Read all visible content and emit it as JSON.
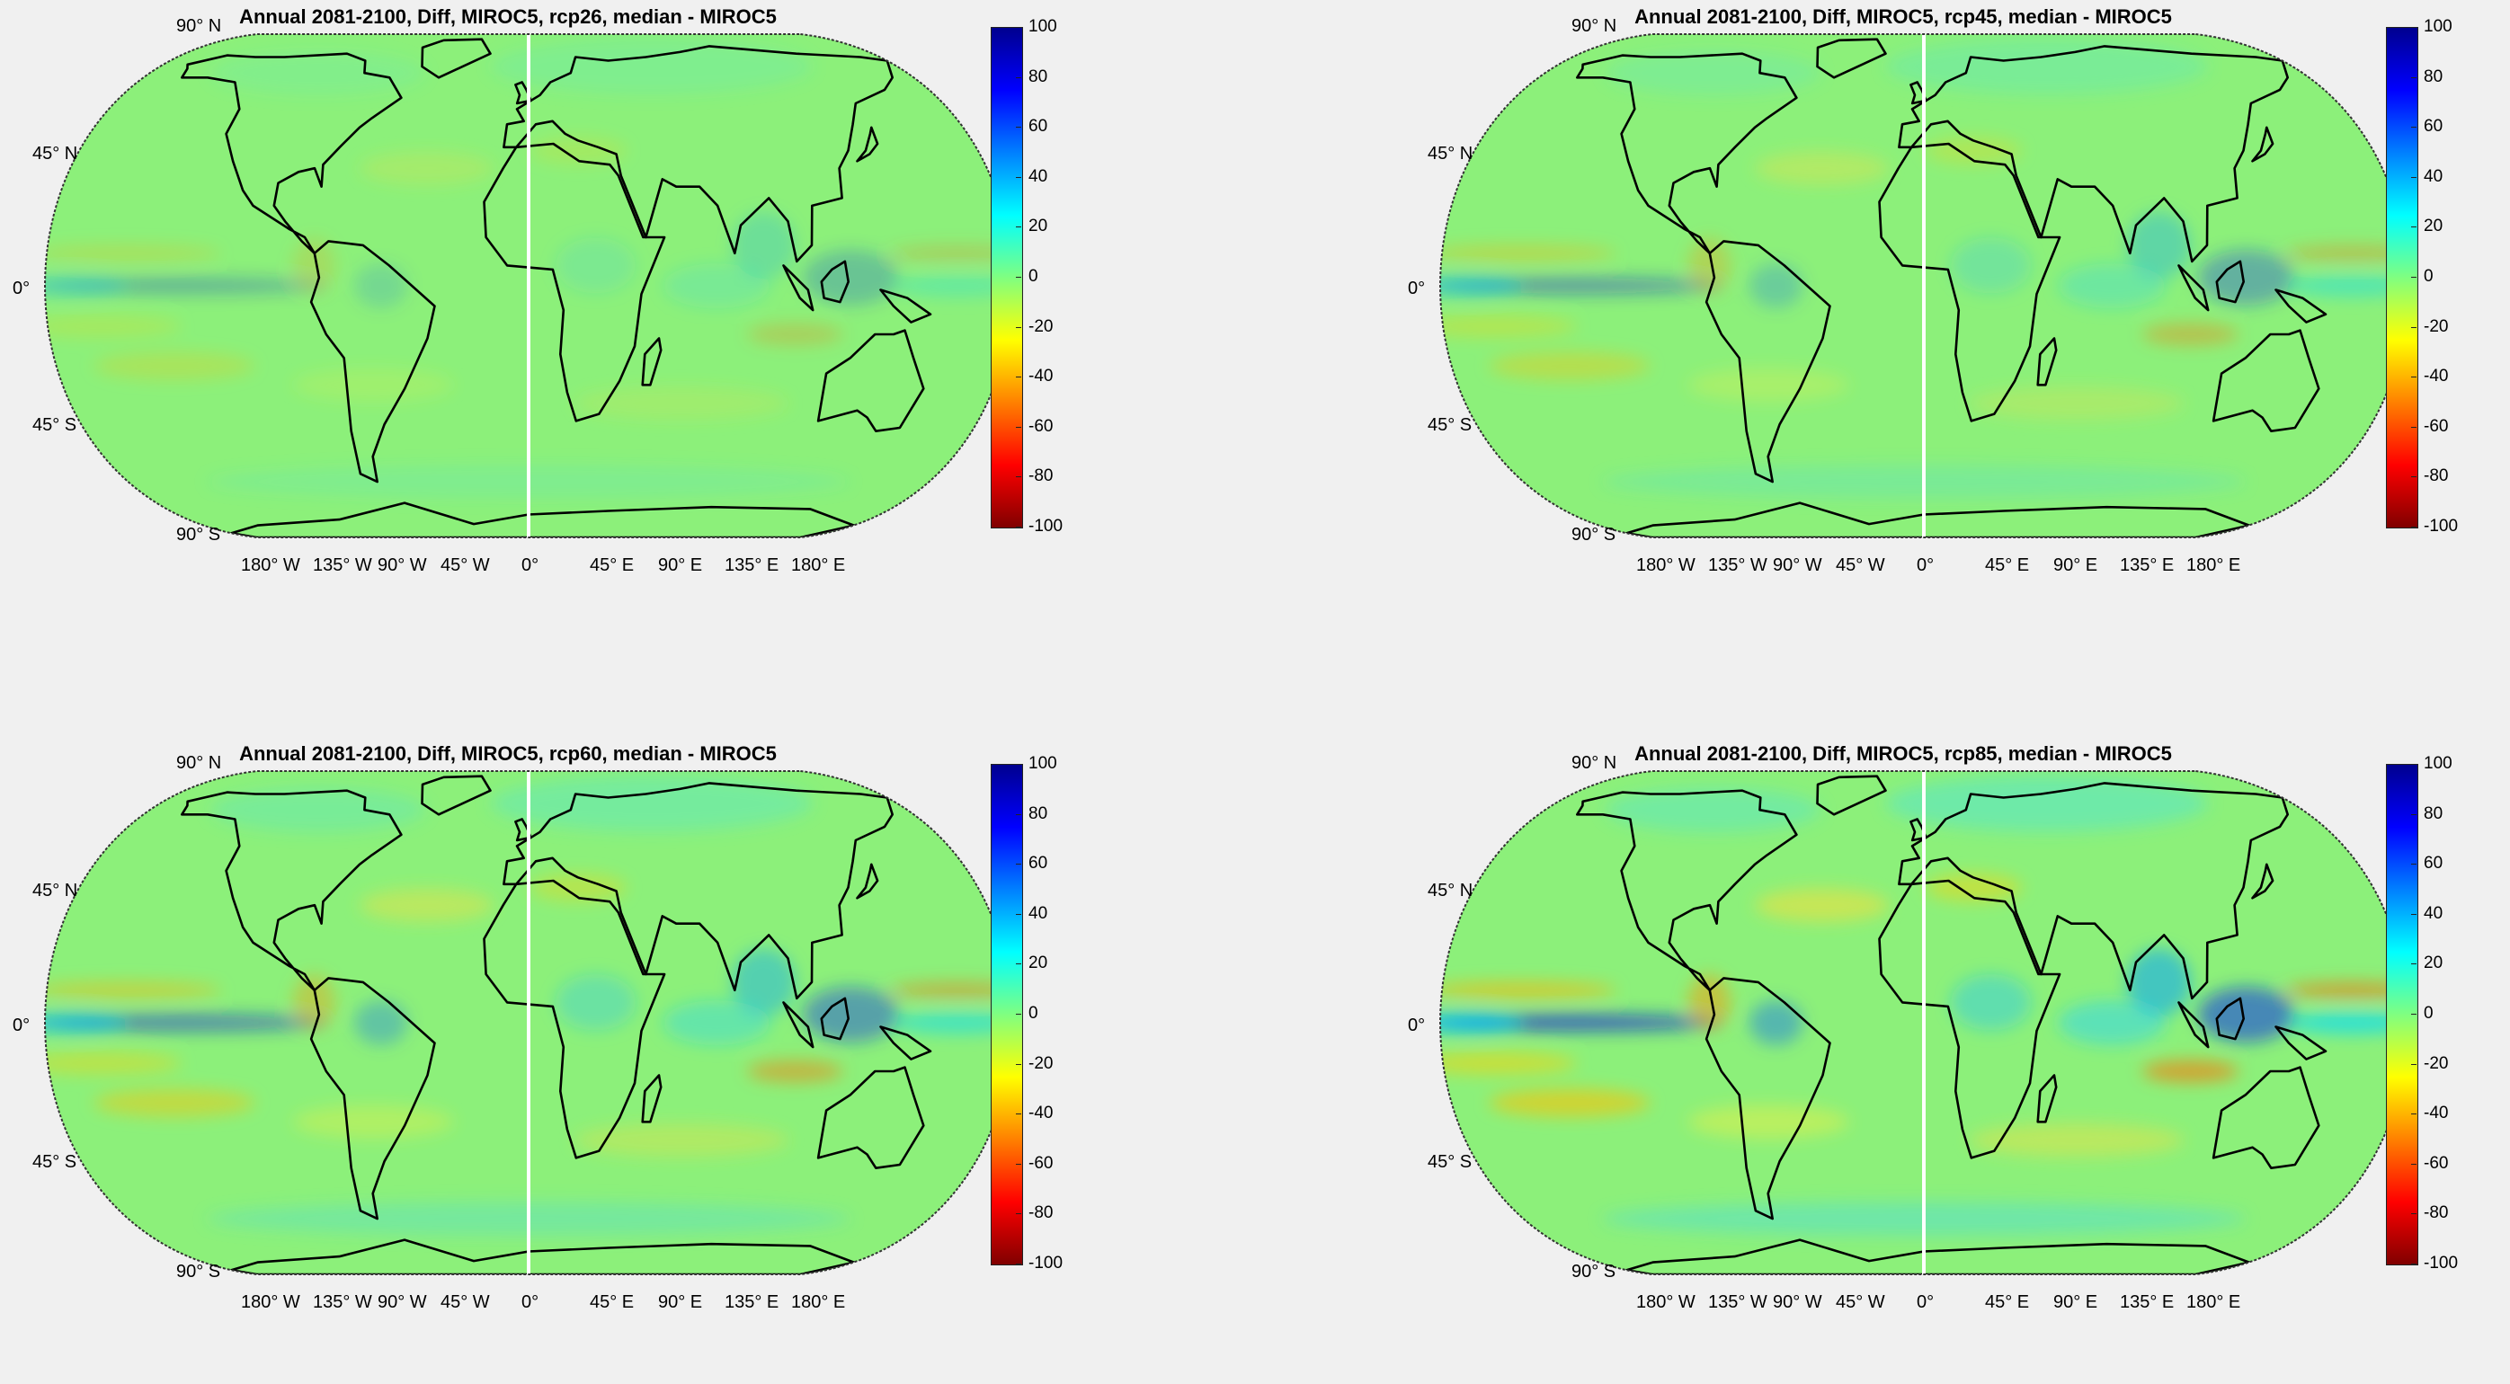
{
  "panels": [
    {
      "title": "Annual 2081-2100, Diff, MIROC5, rcp26, median - MIROC5",
      "scenario": "rcp26"
    },
    {
      "title": "Annual 2081-2100, Diff, MIROC5, rcp45, median - MIROC5",
      "scenario": "rcp45"
    },
    {
      "title": "Annual 2081-2100, Diff, MIROC5, rcp60, median - MIROC5",
      "scenario": "rcp60"
    },
    {
      "title": "Annual 2081-2100, Diff, MIROC5, rcp85, median - MIROC5",
      "scenario": "rcp85"
    }
  ],
  "lat_labels": [
    "90° N",
    "45° N",
    "0°",
    "45° S",
    "90° S"
  ],
  "lon_labels": [
    "180° W",
    "135° W",
    "90° W",
    "45° W",
    "0°",
    "45° E",
    "90° E",
    "135° E",
    "180° E"
  ],
  "colorbar": {
    "ticks": [
      "100",
      "80",
      "60",
      "40",
      "20",
      "0",
      "-20",
      "-40",
      "-60",
      "-80",
      "-100"
    ],
    "min": -100,
    "max": 100,
    "colormap": "jet-reversed"
  },
  "colors": {
    "background": "#f0f0f0",
    "field_base": "#8cf07a",
    "coastline": "#000000"
  }
}
